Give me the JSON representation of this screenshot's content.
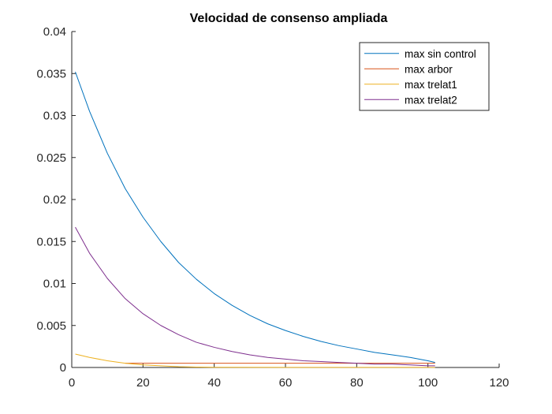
{
  "chart_data": {
    "type": "line",
    "title": "Velocidad de consenso ampliada",
    "xlabel": "",
    "ylabel": "",
    "xlim": [
      0,
      120
    ],
    "ylim": [
      0,
      0.04
    ],
    "xticks": [
      0,
      20,
      40,
      60,
      80,
      100,
      120
    ],
    "yticks": [
      0,
      0.005,
      0.01,
      0.015,
      0.02,
      0.025,
      0.03,
      0.035,
      0.04
    ],
    "xtick_labels": [
      "0",
      "20",
      "40",
      "60",
      "80",
      "100",
      "120"
    ],
    "ytick_labels": [
      "0",
      "0.005",
      "0.01",
      "0.015",
      "0.02",
      "0.025",
      "0.03",
      "0.035",
      "0.04"
    ],
    "grid": false,
    "legend_position": "top-right",
    "series": [
      {
        "name": "max sin control",
        "color": "#0072BD",
        "x": [
          1,
          5,
          10,
          15,
          20,
          25,
          30,
          35,
          40,
          45,
          50,
          55,
          60,
          65,
          70,
          75,
          80,
          85,
          90,
          95,
          100,
          102
        ],
        "y": [
          0.0352,
          0.0305,
          0.0255,
          0.0213,
          0.0179,
          0.015,
          0.0125,
          0.0105,
          0.0088,
          0.0074,
          0.0062,
          0.0052,
          0.0044,
          0.0037,
          0.0031,
          0.0026,
          0.0022,
          0.0018,
          0.0015,
          0.0012,
          0.0008,
          0.0006
        ]
      },
      {
        "name": "max arbor",
        "color": "#D95319",
        "x": [
          15,
          40,
          60,
          80,
          100,
          102
        ],
        "y": [
          0.0005,
          0.0005,
          0.0005,
          0.0005,
          0.0005,
          0.0005
        ]
      },
      {
        "name": "max trelat1",
        "color": "#EDB120",
        "x": [
          1,
          5,
          10,
          15,
          20,
          25,
          30,
          35,
          40,
          60,
          80,
          100,
          102
        ],
        "y": [
          0.0016,
          0.0012,
          0.0008,
          0.0005,
          0.0003,
          0.0002,
          0.0001,
          5e-05,
          2e-05,
          1e-05,
          1e-05,
          1e-05,
          1e-05
        ]
      },
      {
        "name": "max trelat2",
        "color": "#7E2F8E",
        "x": [
          1,
          5,
          10,
          15,
          20,
          25,
          30,
          35,
          40,
          45,
          50,
          55,
          60,
          65,
          70,
          75,
          80,
          85,
          90,
          95,
          100,
          102
        ],
        "y": [
          0.0167,
          0.0136,
          0.0106,
          0.0082,
          0.0064,
          0.005,
          0.0039,
          0.003,
          0.0024,
          0.0019,
          0.0015,
          0.0012,
          0.001,
          0.0008,
          0.0007,
          0.0006,
          0.0005,
          0.0004,
          0.0004,
          0.0003,
          0.0002,
          0.0002
        ]
      }
    ]
  }
}
